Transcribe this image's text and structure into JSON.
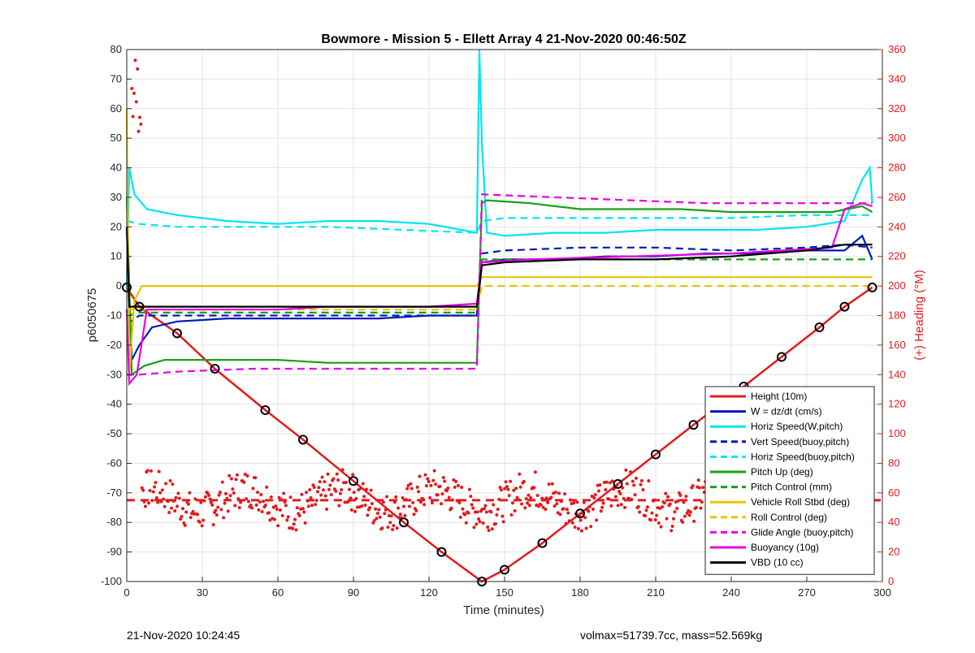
{
  "chart_data": {
    "type": "line",
    "title": "Bowmore - Mission 5 - Ellett Array 4 21-Nov-2020 00:46:50Z",
    "xlabel": "Time (minutes)",
    "ylabel": "p6050675",
    "y2label": "(+) Heading (°M)",
    "xlim": [
      0,
      300
    ],
    "ylim": [
      -100,
      80
    ],
    "y2lim": [
      0,
      360
    ],
    "x_ticks": [
      0,
      30,
      60,
      90,
      120,
      150,
      180,
      210,
      240,
      270,
      300
    ],
    "y_ticks": [
      -100,
      -90,
      -80,
      -70,
      -60,
      -50,
      -40,
      -30,
      -20,
      -10,
      0,
      10,
      20,
      30,
      40,
      50,
      60,
      70,
      80
    ],
    "y2_ticks": [
      0,
      20,
      40,
      60,
      80,
      100,
      120,
      140,
      160,
      180,
      200,
      220,
      240,
      260,
      280,
      300,
      320,
      340,
      360
    ],
    "grid": true,
    "legend_position": "bottom-right",
    "heading_reference": 55,
    "series": [
      {
        "name": "Height (10m)",
        "color": "#e41a1c",
        "style": "solid",
        "x": [
          0,
          5,
          20,
          35,
          55,
          70,
          90,
          110,
          125,
          141,
          150,
          165,
          180,
          195,
          210,
          225,
          245,
          260,
          275,
          285,
          296
        ],
        "y": [
          -0.5,
          -7,
          -16,
          -28,
          -42,
          -52,
          -66,
          -80,
          -90,
          -100,
          -96,
          -87,
          -77,
          -67,
          -57,
          -47,
          -34,
          -24,
          -14,
          -7,
          -0.5
        ]
      },
      {
        "name": "W = dz/dt (cm/s)",
        "color": "#0019b8",
        "style": "solid",
        "x": [
          0,
          2,
          5,
          10,
          20,
          40,
          60,
          80,
          100,
          120,
          139,
          141,
          150,
          170,
          190,
          210,
          230,
          250,
          270,
          285,
          292,
          296
        ],
        "y": [
          19,
          -25,
          -20,
          -14,
          -12,
          -11,
          -11,
          -11,
          -11,
          -10,
          -10,
          8,
          9,
          9,
          10,
          10,
          11,
          11,
          12,
          12,
          17,
          9
        ]
      },
      {
        "name": "Horiz Speed(W,pitch)",
        "color": "#00e5ee",
        "style": "solid",
        "x": [
          0,
          1,
          3,
          8,
          20,
          40,
          60,
          80,
          100,
          120,
          139,
          140,
          141,
          143,
          150,
          170,
          190,
          210,
          230,
          250,
          270,
          285,
          292,
          295,
          296
        ],
        "y": [
          0,
          40,
          31,
          26,
          24,
          22,
          21,
          22,
          22,
          21,
          18,
          80,
          48,
          18,
          17,
          18,
          18,
          19,
          19,
          19,
          20,
          22,
          36,
          40,
          28
        ]
      },
      {
        "name": "Vert Speed(buoy,pitch)",
        "color": "#0019b8",
        "style": "dashed",
        "x": [
          0,
          5,
          20,
          50,
          80,
          110,
          139,
          141,
          150,
          180,
          210,
          240,
          270,
          285,
          296
        ],
        "y": [
          -13,
          -10,
          -10,
          -10,
          -10,
          -10,
          -10,
          11,
          12,
          13,
          13,
          12,
          13,
          14,
          13
        ]
      },
      {
        "name": "Horiz Speed(buoy,pitch)",
        "color": "#00e5ee",
        "style": "dashed",
        "x": [
          0,
          5,
          20,
          50,
          80,
          110,
          139,
          141,
          150,
          180,
          210,
          240,
          270,
          285,
          296
        ],
        "y": [
          22,
          21,
          20,
          20,
          20,
          19,
          18,
          22,
          23,
          23,
          23,
          23,
          24,
          24,
          24
        ]
      },
      {
        "name": "Pitch Up (deg)",
        "color": "#16a016",
        "style": "solid",
        "x": [
          0,
          2,
          7,
          15,
          40,
          60,
          80,
          100,
          120,
          139,
          141,
          143,
          160,
          180,
          200,
          220,
          240,
          260,
          280,
          292,
          296
        ],
        "y": [
          30,
          -30,
          -27,
          -25,
          -25,
          -25,
          -26,
          -26,
          -26,
          -26,
          28,
          29,
          28,
          26,
          26,
          26,
          25,
          25,
          25,
          27,
          25
        ]
      },
      {
        "name": "Pitch Control (mm)",
        "color": "#16a016",
        "style": "dashed",
        "x": [
          0,
          5,
          30,
          60,
          90,
          120,
          139,
          141,
          170,
          200,
          230,
          260,
          296
        ],
        "y": [
          -10,
          -9,
          -9,
          -9,
          -9,
          -9,
          -9,
          9,
          9,
          9,
          9,
          9,
          9
        ]
      },
      {
        "name": "Vehicle Roll Stbd (deg)",
        "color": "#e8c400",
        "style": "solid",
        "x": [
          0,
          1,
          3,
          6,
          20,
          50,
          80,
          110,
          139,
          141,
          160,
          190,
          220,
          250,
          280,
          296
        ],
        "y": [
          60,
          -30,
          -5,
          0,
          0,
          0,
          0,
          0,
          0,
          3,
          3,
          3,
          3,
          3,
          3,
          3
        ]
      },
      {
        "name": "Roll Control (deg)",
        "color": "#e8c400",
        "style": "dashed",
        "x": [
          0,
          6,
          40,
          80,
          120,
          139,
          141,
          180,
          220,
          260,
          296
        ],
        "y": [
          -8,
          -8,
          -8,
          -8,
          -8,
          -8,
          0,
          0,
          0,
          0,
          0
        ]
      },
      {
        "name": "Glide Angle (buoy,pitch)",
        "color": "#e600e6",
        "style": "dashed",
        "x": [
          0,
          2,
          5,
          20,
          50,
          80,
          110,
          139,
          141,
          170,
          200,
          230,
          260,
          296
        ],
        "y": [
          -30,
          -30,
          -30,
          -29,
          -28,
          -28,
          -28,
          -28,
          31,
          30,
          29,
          28,
          28,
          28
        ]
      },
      {
        "name": "Buoyancy (10g)",
        "color": "#e600e6",
        "style": "solid",
        "x": [
          0,
          1,
          4,
          8,
          20,
          40,
          60,
          80,
          100,
          120,
          139,
          141,
          160,
          200,
          240,
          280,
          285,
          292,
          296
        ],
        "y": [
          -8,
          -33,
          -30,
          -8,
          -8,
          -8,
          -8,
          -7,
          -7,
          -7,
          -6,
          8,
          9,
          10,
          11,
          13,
          26,
          28,
          27
        ]
      },
      {
        "name": "VBD (10 cc)",
        "color": "#000000",
        "style": "solid",
        "x": [
          0,
          1,
          3,
          139,
          141,
          150,
          180,
          210,
          240,
          270,
          285,
          296
        ],
        "y": [
          20,
          -7,
          -7,
          -7,
          7,
          8,
          9,
          9,
          10,
          12,
          14,
          14
        ]
      }
    ]
  },
  "footer": {
    "left": "21-Nov-2020 10:24:45",
    "right": "volmax=51739.7cc, mass=52.569kg"
  }
}
